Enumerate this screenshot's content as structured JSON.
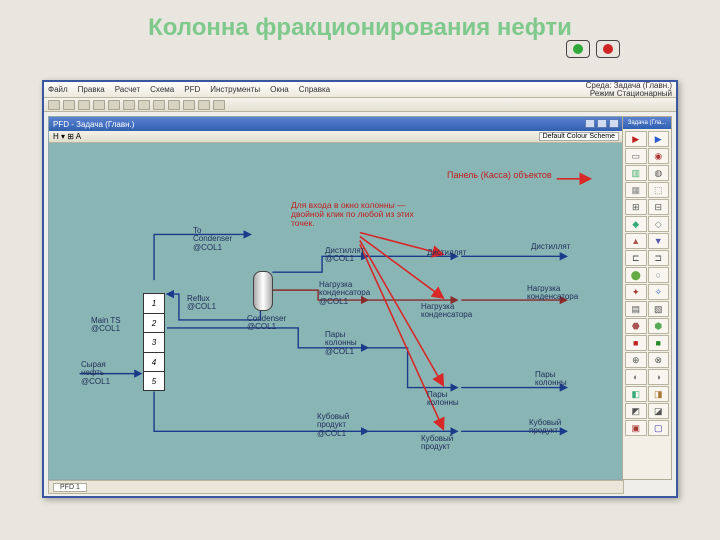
{
  "slide": {
    "title": "Колонна фракционирования нефти"
  },
  "traffic": {
    "green": "#2faa3a",
    "red": "#d02424"
  },
  "app": {
    "menu": [
      "Файл",
      "Правка",
      "Расчет",
      "Схема",
      "PFD",
      "Инструменты",
      "Окна",
      "Справка"
    ],
    "right_top": "Среда: Задача (Главн.)",
    "right_bot": "Режим Стационарный",
    "pfd_title": "PFD - Задача (Главн.)",
    "color_scheme": "Default Colour Scheme",
    "status_tab": "PFD 1"
  },
  "annotations": {
    "panel": "Панель (Кассa) объектов",
    "hint": "Для входа в окно колонны —\nдвойной клик по любой из этих\nточек."
  },
  "labels": {
    "to_cond": "To\nCondenser\n@COL1",
    "reflux": "Reflux\n@COL1",
    "condenser": "Condenser\n@COL1",
    "main_ts": "Main TS\n@COL1",
    "feed": "Сырая\nнефть\n@COL1",
    "dist_col": "Дистиллят\n@COL1",
    "q_cond_col": "Нагрузка\nконденсатора\n@COL1",
    "vap_col": "Пары\nколонны\n@COL1",
    "bot_col": "Кубовый\nпродукт\n@COL1",
    "dist1": "Дистиллят",
    "dist2": "Дистиллят",
    "q_cond1": "Нагрузка\nконденсатора",
    "q_cond2": "Нагрузка\nконденсатора",
    "vap1": "Пары\nколонны",
    "vap2": "Пары\nколонны",
    "bot1": "Кубовый\nпродукт",
    "bot2": "Кубовый\nпродукт"
  },
  "trays": [
    "1",
    "2",
    "3",
    "4",
    "5"
  ],
  "palette": {
    "title": "Задача (Гла...",
    "items": [
      {
        "c": "#c02020",
        "s": "▶"
      },
      {
        "c": "#2a5acf",
        "s": "▶"
      },
      {
        "c": "#666",
        "s": "▭"
      },
      {
        "c": "#a33",
        "s": "◉"
      },
      {
        "c": "#4a6",
        "s": "▥"
      },
      {
        "c": "#555",
        "s": "◍"
      },
      {
        "c": "#888",
        "s": "▦"
      },
      {
        "c": "#777",
        "s": "⬚"
      },
      {
        "c": "#555",
        "s": "⊞"
      },
      {
        "c": "#555",
        "s": "⊟"
      },
      {
        "c": "#3a7",
        "s": "◆"
      },
      {
        "c": "#777",
        "s": "◇"
      },
      {
        "c": "#a55",
        "s": "▲"
      },
      {
        "c": "#55a",
        "s": "▼"
      },
      {
        "c": "#555",
        "s": "⊏"
      },
      {
        "c": "#555",
        "s": "⊐"
      },
      {
        "c": "#6a4",
        "s": "⬤"
      },
      {
        "c": "#888",
        "s": "○"
      },
      {
        "c": "#a33",
        "s": "✦"
      },
      {
        "c": "#2a5acf",
        "s": "✧"
      },
      {
        "c": "#555",
        "s": "▤"
      },
      {
        "c": "#555",
        "s": "▧"
      },
      {
        "c": "#a55",
        "s": "⬣"
      },
      {
        "c": "#5a5",
        "s": "⬢"
      },
      {
        "c": "#c02020",
        "s": "■"
      },
      {
        "c": "#2a8a2a",
        "s": "■"
      },
      {
        "c": "#555",
        "s": "⊕"
      },
      {
        "c": "#555",
        "s": "⊗"
      },
      {
        "c": "#777",
        "s": "◐"
      },
      {
        "c": "#777",
        "s": "◑"
      },
      {
        "c": "#3a7",
        "s": "◧"
      },
      {
        "c": "#a73",
        "s": "◨"
      },
      {
        "c": "#555",
        "s": "◩"
      },
      {
        "c": "#555",
        "s": "◪"
      },
      {
        "c": "#a33",
        "s": "▣"
      },
      {
        "c": "#33a",
        "s": "▢"
      }
    ]
  },
  "colors": {
    "stream": "#1a3a8a",
    "energy": "#8a2a2a",
    "arrow_red": "#d82828",
    "canvas_bg": "#8ab5b5"
  }
}
